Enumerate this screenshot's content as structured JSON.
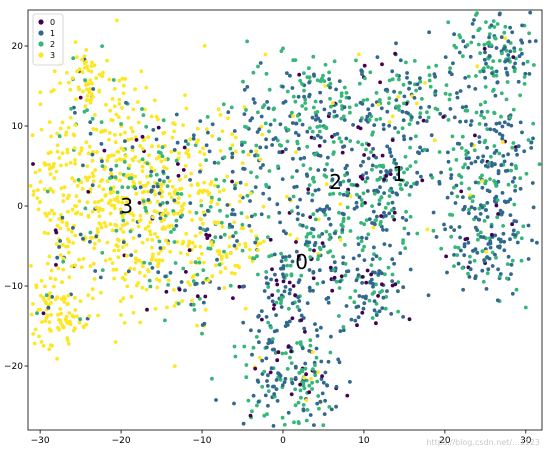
{
  "chart_data": {
    "type": "scatter",
    "title": "",
    "xlabel": "",
    "ylabel": "",
    "xlim": [
      -31.5,
      32
    ],
    "ylim": [
      -28,
      24.5
    ],
    "xticks": [
      -30,
      -20,
      -10,
      0,
      10,
      20,
      30
    ],
    "yticks": [
      -20,
      -10,
      0,
      10,
      20
    ],
    "grid": false,
    "legend": {
      "placement": "top-left",
      "entries": [
        {
          "name": "0",
          "color": "#440154"
        },
        {
          "name": "1",
          "color": "#31688e"
        },
        {
          "name": "2",
          "color": "#35b779"
        },
        {
          "name": "3",
          "color": "#fde725"
        }
      ]
    },
    "cluster_labels": [
      {
        "text": "0",
        "x": 2.3,
        "y": -7.2
      },
      {
        "text": "1",
        "x": 14.3,
        "y": 3.8
      },
      {
        "text": "2",
        "x": 6.5,
        "y": 2.8
      },
      {
        "text": "3",
        "x": -19.3,
        "y": -0.2
      }
    ],
    "watermark": "https://blog.csdn.net/...1123"
  }
}
